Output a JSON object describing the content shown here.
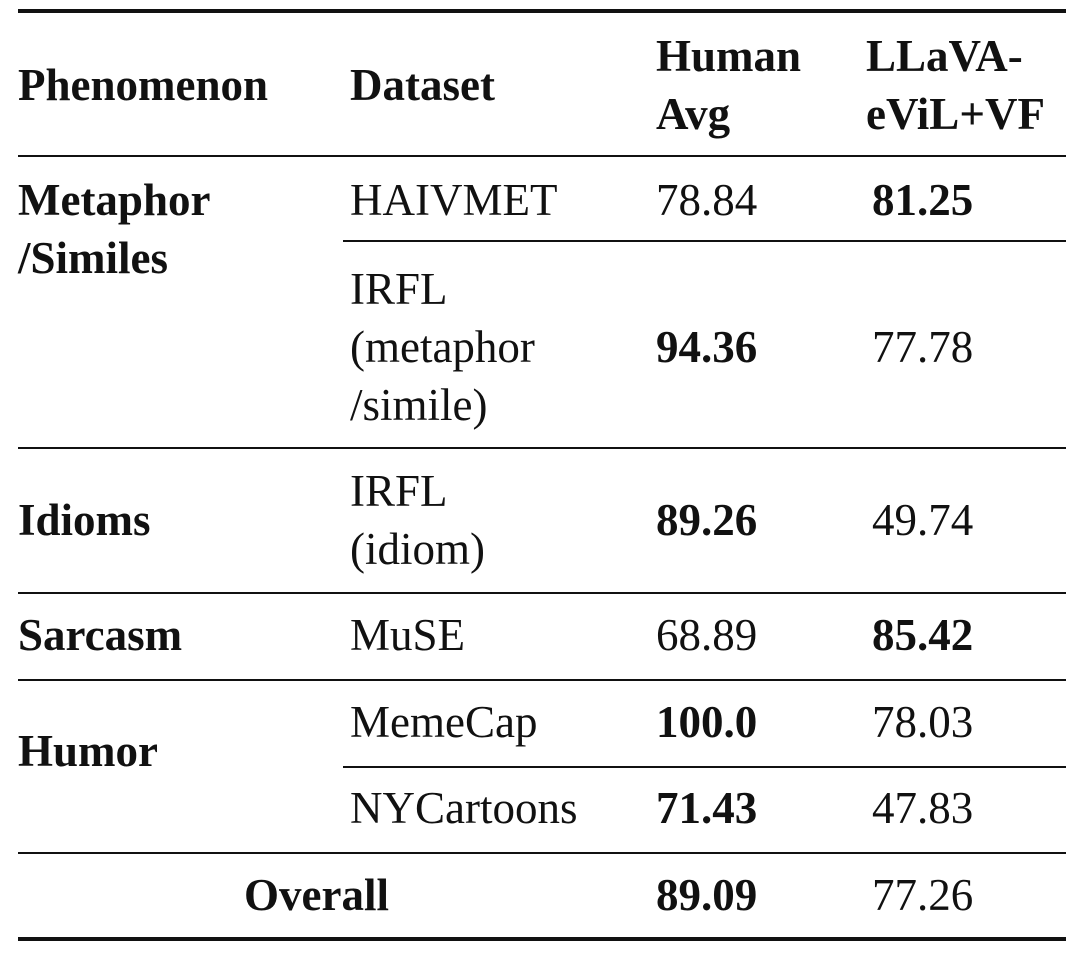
{
  "table": {
    "headers": {
      "phenomenon": "Phenomenon",
      "dataset": "Dataset",
      "human": "Human\nAvg",
      "model": "LLaVA-\neViL+VF"
    },
    "rows": [
      {
        "phenomenon": "Metaphor\n/Similes",
        "dataset": "HAIVMET",
        "human": "78.84",
        "model": "81.25"
      },
      {
        "phenomenon": "",
        "dataset": "IRFL\n(metaphor\n/simile)",
        "human": "94.36",
        "model": "77.78"
      },
      {
        "phenomenon": "Idioms",
        "dataset": "IRFL\n(idiom)",
        "human": "89.26",
        "model": "49.74"
      },
      {
        "phenomenon": "Sarcasm",
        "dataset": "MuSE",
        "human": "68.89",
        "model": "85.42"
      },
      {
        "phenomenon": "Humor",
        "dataset": "MemeCap",
        "human": "100.0",
        "model": "78.03"
      },
      {
        "phenomenon": "",
        "dataset": "NYCartoons",
        "human": "71.43",
        "model": "47.83"
      }
    ],
    "overall": {
      "label": "Overall",
      "human": "89.09",
      "model": "77.26"
    }
  }
}
